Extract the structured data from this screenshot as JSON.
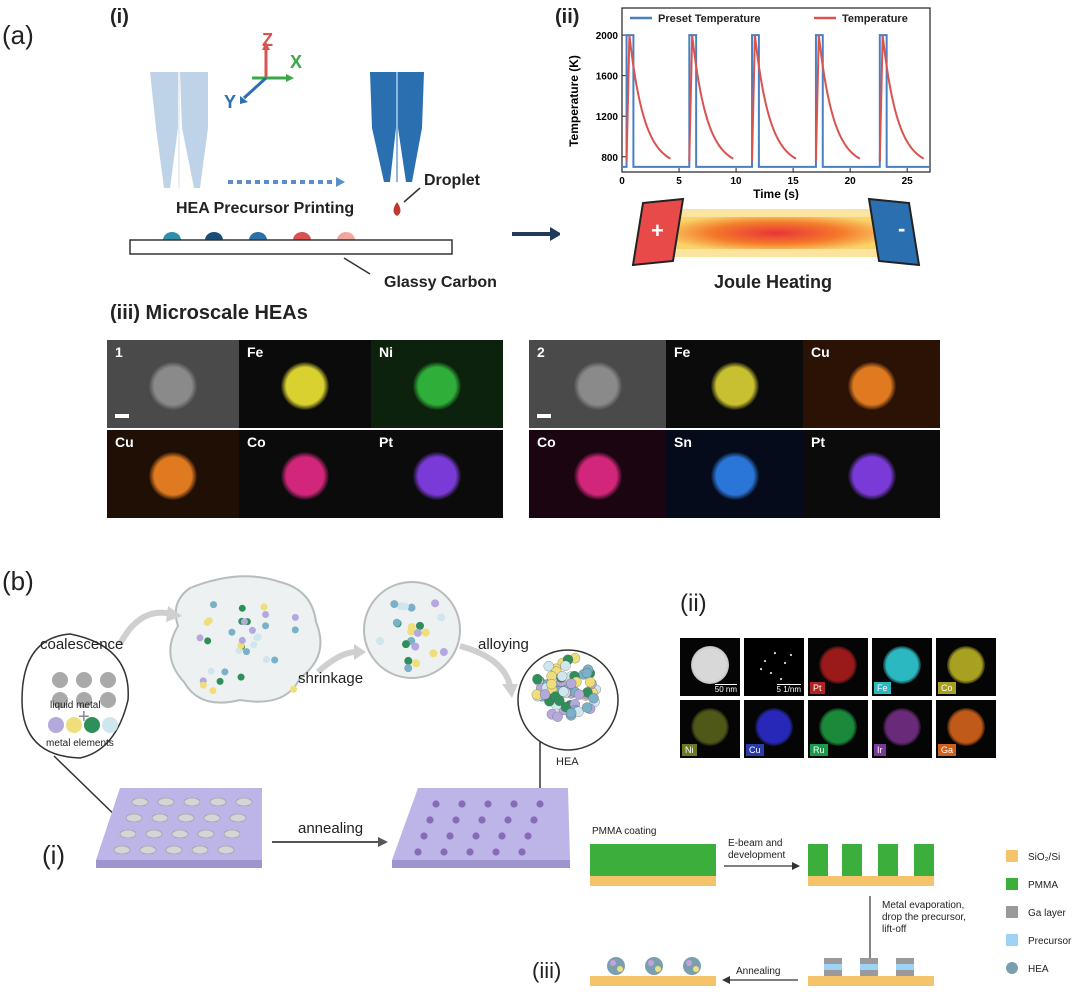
{
  "panel_a": {
    "letter": "(a)",
    "i": {
      "label": "(i)",
      "axes": {
        "z": "Z",
        "x": "X",
        "y": "Y"
      },
      "printing_label": "HEA Precursor Printing",
      "droplet_label": "Droplet",
      "substrate_label": "Glassy Carbon",
      "dot_colors": [
        "#2f8fa8",
        "#1c4d78",
        "#2c6fa8",
        "#d95050",
        "#f1a7a0"
      ]
    },
    "ii": {
      "label": "(ii)",
      "heating_label": "Joule Heating",
      "plus": "+",
      "minus": "-"
    },
    "iii": {
      "label": "(iii) Microscale HEAs",
      "set1": [
        {
          "label": "1",
          "color": "#8a8a8a",
          "bg": "#4a4a4a"
        },
        {
          "label": "Fe",
          "color": "#d8d130",
          "bg": "#0b0b0b"
        },
        {
          "label": "Ni",
          "color": "#2fae3a",
          "bg": "#0c220c"
        },
        {
          "label": "Cu",
          "color": "#e07a20",
          "bg": "#1f0f05"
        },
        {
          "label": "Co",
          "color": "#d1267a",
          "bg": "#0b0b0b"
        },
        {
          "label": "Pt",
          "color": "#7a3ad8",
          "bg": "#0b0b0b"
        }
      ],
      "set2": [
        {
          "label": "2",
          "color": "#8a8a8a",
          "bg": "#4a4a4a"
        },
        {
          "label": "Fe",
          "color": "#c8c030",
          "bg": "#0b0b0b"
        },
        {
          "label": "Cu",
          "color": "#e07a20",
          "bg": "#2a1205"
        },
        {
          "label": "Co",
          "color": "#d1267a",
          "bg": "#1a0510"
        },
        {
          "label": "Sn",
          "color": "#2a76d8",
          "bg": "#050b1a"
        },
        {
          "label": "Pt",
          "color": "#7a3ad8",
          "bg": "#0b0b0b"
        }
      ]
    }
  },
  "chart_data": {
    "type": "line",
    "xlabel": "Time (s)",
    "ylabel": "Temperature (K)",
    "xlim": [
      0,
      27
    ],
    "ylim": [
      650,
      2050
    ],
    "xticks": [
      0,
      5,
      10,
      15,
      20,
      25
    ],
    "yticks": [
      800,
      1200,
      1600,
      2000
    ],
    "legend_position": "top",
    "series": [
      {
        "name": "Preset Temperature",
        "color": "#4a7fc1",
        "pulses": [
          0.4,
          5.9,
          11.4,
          17.0,
          22.6
        ],
        "pulse_width": 0.6,
        "low": 700,
        "high": 2000
      },
      {
        "name": "Temperature",
        "color": "#d9534f",
        "pulses": [
          0.4,
          5.9,
          11.4,
          17.0,
          22.6
        ],
        "peak": 2000,
        "floor": 700,
        "decay_time": 3.6
      }
    ]
  },
  "panel_b": {
    "letter": "(b)",
    "coalescence": "coalescence",
    "shrinkage": "shrinkage",
    "alloying": "alloying",
    "liquid_metal": "liquid metal",
    "plus": "+",
    "metal_elements": "metal elements",
    "hea": "HEA",
    "i_label": "(i)",
    "annealing": "annealing",
    "ii_label": "(ii)",
    "ii_tiles": [
      {
        "label": "",
        "color": "#c8c8c8",
        "tagbg": "transparent",
        "scale": "50 nm"
      },
      {
        "label": "",
        "color": "#000000",
        "tagbg": "transparent",
        "scale": "5 1/nm"
      },
      {
        "label": "Pt",
        "color": "#9a1a1a",
        "tagbg": "#b22222"
      },
      {
        "label": "Fe",
        "color": "#2bb8c0",
        "tagbg": "#2bb8c0"
      },
      {
        "label": "Co",
        "color": "#a8a020",
        "tagbg": "#a8a020"
      },
      {
        "label": "Ni",
        "color": "#505818",
        "tagbg": "#6a7a20"
      },
      {
        "label": "Cu",
        "color": "#2828b8",
        "tagbg": "#2a3aa8"
      },
      {
        "label": "Ru",
        "color": "#1a8a3a",
        "tagbg": "#1a9a4a"
      },
      {
        "label": "Ir",
        "color": "#6a2a7a",
        "tagbg": "#7a3a9a"
      },
      {
        "label": "Ga",
        "color": "#c05a18",
        "tagbg": "#d0601a"
      }
    ],
    "iii": {
      "label": "(iii)",
      "pmma_coating": "PMMA coating",
      "ebeam_1": "E-beam and",
      "ebeam_2": "development",
      "metal_1": "Metal evaporation,",
      "metal_2": "drop the precursor,",
      "metal_3": "lift-off",
      "annealing": "Annealing",
      "legend": [
        {
          "name": "SiO₂/Si",
          "color": "#f5c36a"
        },
        {
          "name": "PMMA",
          "color": "#3cae3c"
        },
        {
          "name": "Ga layer",
          "color": "#9a9a9a"
        },
        {
          "name": "Precursor",
          "color": "#9fd3f5"
        },
        {
          "name": "HEA",
          "color": "#7aa0b0"
        }
      ]
    }
  }
}
